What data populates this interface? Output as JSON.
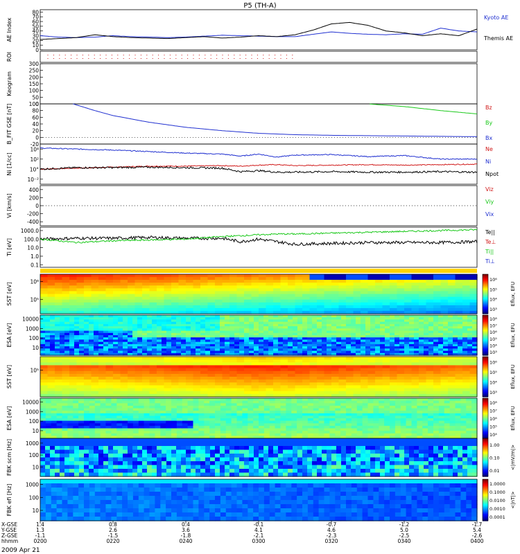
{
  "title": "P5 (TH-A)",
  "footer_date": "2009 Apr 21",
  "colors": {
    "blue": "#1f2fd0",
    "red": "#d01818",
    "green": "#18c818",
    "black": "#000000"
  },
  "chart_data": [
    {
      "panel": "ae",
      "type": "line",
      "ylabel": "AE Index",
      "yticks": [
        "0",
        "10",
        "20",
        "30",
        "40",
        "50",
        "60",
        "70",
        "80"
      ],
      "ylim": [
        0,
        85
      ],
      "x_minutes": [
        0,
        5,
        10,
        15,
        20,
        25,
        30,
        35,
        40,
        45,
        50,
        55,
        60,
        65,
        70,
        75,
        80,
        85,
        90,
        95,
        100,
        105,
        110,
        115,
        120
      ],
      "series": [
        {
          "name": "Kyoto AE",
          "color": "blue",
          "values": [
            30,
            27,
            26,
            27,
            30,
            28,
            27,
            26,
            27,
            29,
            31,
            30,
            29,
            28,
            28,
            33,
            38,
            35,
            33,
            32,
            34,
            33,
            46,
            40,
            38
          ]
        },
        {
          "name": "Themis AE",
          "color": "black",
          "values": [
            22,
            24,
            26,
            32,
            28,
            26,
            25,
            24,
            26,
            28,
            25,
            27,
            30,
            28,
            32,
            42,
            55,
            58,
            52,
            40,
            36,
            30,
            34,
            30,
            44
          ]
        }
      ]
    },
    {
      "panel": "roi",
      "type": "scatter",
      "ylabel": "ROI",
      "note_rows": 2
    },
    {
      "panel": "keogram",
      "type": "line",
      "ylabel": "Keogram",
      "yticks": [
        "0",
        "50",
        "100",
        "150",
        "200",
        "250",
        "300"
      ],
      "ylim": [
        0,
        300
      ]
    },
    {
      "panel": "bfit",
      "type": "line",
      "ylabel": "B_FIT GSE [nT]",
      "yticks": [
        "-20",
        "0",
        "20",
        "40",
        "60",
        "80",
        "100"
      ],
      "ylim": [
        -20,
        100
      ],
      "x_minutes": [
        9,
        15,
        20,
        30,
        40,
        50,
        60,
        70,
        80,
        90,
        100,
        110,
        120
      ],
      "series": [
        {
          "name": "Bz",
          "color": "red",
          "values": [
            null,
            null,
            null,
            null,
            null,
            null,
            null,
            null,
            null,
            null,
            null,
            null,
            100
          ]
        },
        {
          "name": "By",
          "color": "green",
          "values": [
            null,
            null,
            null,
            null,
            null,
            null,
            null,
            null,
            null,
            100,
            92,
            80,
            70
          ]
        },
        {
          "name": "Bx",
          "color": "blue",
          "values": [
            100,
            80,
            65,
            45,
            30,
            20,
            12,
            8,
            6,
            5,
            4,
            3,
            2
          ]
        }
      ]
    },
    {
      "panel": "density",
      "type": "line",
      "ylabel": "Ni [1/cc]",
      "yticks": [
        "10⁻²",
        "10°",
        "10²",
        "10⁴"
      ],
      "log": true,
      "ylim_exp": [
        -3,
        5
      ],
      "x_minutes": [
        0,
        10,
        20,
        30,
        40,
        50,
        55,
        60,
        65,
        70,
        80,
        90,
        100,
        110,
        120
      ],
      "series": [
        {
          "name": "Ne",
          "color": "red",
          "exp": [
            0.0,
            0.2,
            0.4,
            0.6,
            0.6,
            0.7,
            0.6,
            0.8,
            0.9,
            0.7,
            0.8,
            0.9,
            0.8,
            0.9,
            1.0
          ]
        },
        {
          "name": "Ni",
          "color": "blue",
          "exp": [
            4.2,
            4.0,
            3.8,
            3.5,
            3.2,
            3.0,
            2.6,
            3.0,
            2.4,
            2.8,
            2.9,
            2.5,
            2.7,
            2.0,
            2.0
          ]
        },
        {
          "name": "Npot",
          "color": "black",
          "exp": [
            0.0,
            0.3,
            0.3,
            0.4,
            0.3,
            0.2,
            -0.5,
            -0.3,
            -0.6,
            -0.6,
            -0.5,
            -0.6,
            -0.6,
            -0.5,
            -0.6
          ]
        }
      ]
    },
    {
      "panel": "velocity",
      "type": "line",
      "ylabel": "Vi [km/s]",
      "yticks": [
        "-400",
        "-200",
        "0",
        "200",
        "400"
      ],
      "ylim": [
        -500,
        500
      ],
      "series": [
        {
          "name": "Viz",
          "color": "red"
        },
        {
          "name": "Viy",
          "color": "green"
        },
        {
          "name": "Vix",
          "color": "blue"
        }
      ]
    },
    {
      "panel": "temperature",
      "type": "line",
      "ylabel": "Ti [eV]",
      "yticks": [
        "0.1",
        "1.0",
        "10.0",
        "100.0",
        "1000.0"
      ],
      "log": true,
      "ylim_exp": [
        -1.3,
        3.4
      ],
      "x_minutes": [
        0,
        10,
        20,
        30,
        40,
        50,
        55,
        60,
        65,
        70,
        80,
        90,
        100,
        110,
        120
      ],
      "series": [
        {
          "name": "Te||",
          "color": "black",
          "exp": [
            2.0,
            2.1,
            2.1,
            2.2,
            2.1,
            2.1,
            1.7,
            2.0,
            1.7,
            1.4,
            1.5,
            1.6,
            1.6,
            1.6,
            1.7
          ]
        },
        {
          "name": "Te⊥",
          "color": "red",
          "exp": null
        },
        {
          "name": "Ti||",
          "color": "green",
          "exp": [
            2.0,
            1.6,
            1.8,
            1.9,
            2.0,
            2.3,
            2.4,
            2.5,
            2.6,
            2.6,
            2.7,
            2.8,
            2.9,
            3.0,
            3.1
          ]
        },
        {
          "name": "Ti⊥",
          "color": "blue",
          "exp": null
        }
      ]
    },
    {
      "panel": "sst_full",
      "type": "heatmap",
      "ylabel": "SST [eV]",
      "yticks": [
        "10⁵",
        "10⁶"
      ],
      "colorbar": {
        "label": "Eflux, EFU",
        "ticks": [
          "10³",
          "10⁴",
          "10⁵",
          "10⁶"
        ]
      }
    },
    {
      "panel": "esa_full",
      "type": "heatmap",
      "ylabel": "ESA [eV]",
      "yticks": [
        "10",
        "100",
        "1000",
        "10000"
      ],
      "colorbar": {
        "label": "Eflux, EFU",
        "ticks": [
          "10³",
          "10⁴",
          "10⁵",
          "10⁶",
          "10⁷",
          "10⁸"
        ]
      }
    },
    {
      "panel": "sst_reduced",
      "type": "heatmap",
      "ylabel": "SST [eV]",
      "yticks": [
        "10⁵"
      ],
      "colorbar": {
        "label": "Eflux, EFU",
        "ticks": [
          "10³",
          "10⁴",
          "10⁵",
          "10⁶"
        ]
      }
    },
    {
      "panel": "esa_reduced",
      "type": "heatmap",
      "ylabel": "ESA [eV]",
      "yticks": [
        "10",
        "100",
        "1000",
        "10000"
      ],
      "colorbar": {
        "label": "Eflux, EFU",
        "ticks": [
          "10⁴",
          "10⁵",
          "10⁶",
          "10⁷",
          "10⁸"
        ]
      }
    },
    {
      "panel": "fbk_scm",
      "type": "heatmap",
      "ylabel": "FBK scm [Hz]",
      "yticks": [
        "10",
        "100",
        "1000"
      ],
      "colorbar": {
        "label": "<|mV/m|>",
        "ticks": [
          "0.01",
          "0.10",
          "1.00"
        ]
      }
    },
    {
      "panel": "fbk_efi",
      "type": "heatmap",
      "ylabel": "FBK efi [Hz]",
      "yticks": [
        "10",
        "100",
        "1000"
      ],
      "colorbar": {
        "label": "<|nT|>",
        "ticks": [
          "0.0001",
          "0.0010",
          "0.0100",
          "0.1000",
          "1.0000"
        ]
      }
    },
    {
      "panel": "time_axis",
      "type": "table",
      "rows": [
        {
          "label": "X-GSE",
          "values": [
            "1.4",
            "0.8",
            "0.4",
            "-0.1",
            "-0.7",
            "-1.2",
            "-1.7"
          ]
        },
        {
          "label": "Y-GSE",
          "values": [
            "1.3",
            "2.6",
            "3.6",
            "4.1",
            "4.6",
            "5.0",
            "5.4"
          ]
        },
        {
          "label": "Z-GSE",
          "values": [
            "-1.1",
            "-1.5",
            "-1.8",
            "-2.1",
            "-2.3",
            "-2.5",
            "-2.6"
          ]
        },
        {
          "label": "hhmm",
          "values": [
            "0200",
            "0220",
            "0240",
            "0300",
            "0320",
            "0340",
            "0400"
          ]
        }
      ]
    }
  ]
}
